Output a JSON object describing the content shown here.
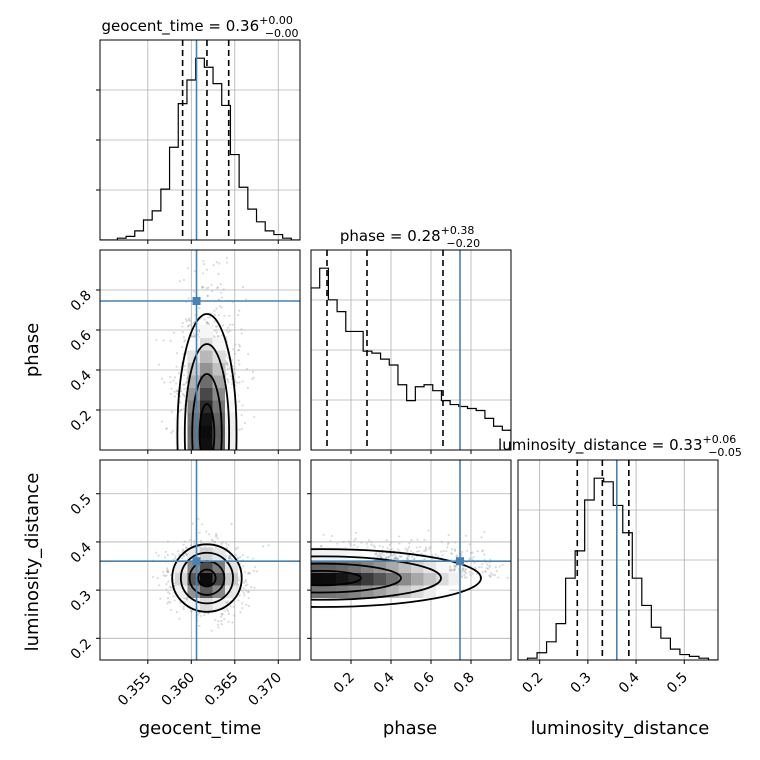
{
  "chart_data": {
    "type": "corner",
    "params": [
      {
        "name": "geocent_time",
        "title_main": "geocent_time = 0.36",
        "title_sup": "+0.00",
        "title_sub": "−0.00",
        "range": [
          0.3495,
          0.3725
        ],
        "ticks": [
          0.355,
          0.36,
          0.365,
          0.37
        ],
        "tick_labels": [
          "0.355",
          "0.360",
          "0.365",
          "0.370"
        ],
        "truth": 0.3606,
        "quantiles": [
          0.359,
          0.3618,
          0.3643
        ],
        "hist": [
          0.0,
          0.0,
          0.01,
          0.02,
          0.05,
          0.11,
          0.16,
          0.28,
          0.51,
          0.75,
          0.88,
          1.0,
          0.95,
          0.86,
          0.74,
          0.47,
          0.29,
          0.17,
          0.1,
          0.05,
          0.03,
          0.01,
          0.0
        ]
      },
      {
        "name": "phase",
        "title_main": "phase = 0.28",
        "title_sup": "+0.38",
        "title_sub": "−0.20",
        "range": [
          0.0,
          1.0
        ],
        "ticks": [
          0.2,
          0.4,
          0.6,
          0.8
        ],
        "tick_labels": [
          "0.2",
          "0.4",
          "0.6",
          "0.8"
        ],
        "truth": 0.745,
        "quantiles": [
          0.08,
          0.28,
          0.66
        ],
        "hist": [
          0.82,
          0.92,
          0.76,
          0.7,
          0.6,
          0.6,
          0.5,
          0.49,
          0.46,
          0.43,
          0.33,
          0.25,
          0.32,
          0.33,
          0.3,
          0.25,
          0.23,
          0.22,
          0.21,
          0.2,
          0.16,
          0.12,
          0.1
        ]
      },
      {
        "name": "luminosity_distance",
        "title_main": "luminosity_distance = 0.33",
        "title_sup": "+0.06",
        "title_sub": "−0.05",
        "range": [
          0.155,
          0.57
        ],
        "ticks": [
          0.2,
          0.3,
          0.4,
          0.5
        ],
        "tick_labels": [
          "0.2",
          "0.3",
          "0.4",
          "0.5"
        ],
        "truth": 0.36,
        "quantiles": [
          0.278,
          0.33,
          0.385
        ],
        "hist": [
          0.0,
          0.01,
          0.04,
          0.1,
          0.2,
          0.45,
          0.6,
          0.88,
          1.0,
          0.98,
          0.85,
          0.7,
          0.45,
          0.3,
          0.18,
          0.12,
          0.06,
          0.03,
          0.02,
          0.01,
          0.0
        ]
      }
    ],
    "xlabels": [
      "geocent_time",
      "phase",
      "luminosity_distance"
    ],
    "ylabels": [
      "",
      "phase",
      "luminosity_distance"
    ],
    "grid": true,
    "colors": {
      "truth": "#4682b4",
      "density": "#000000",
      "points": "#999999"
    }
  }
}
